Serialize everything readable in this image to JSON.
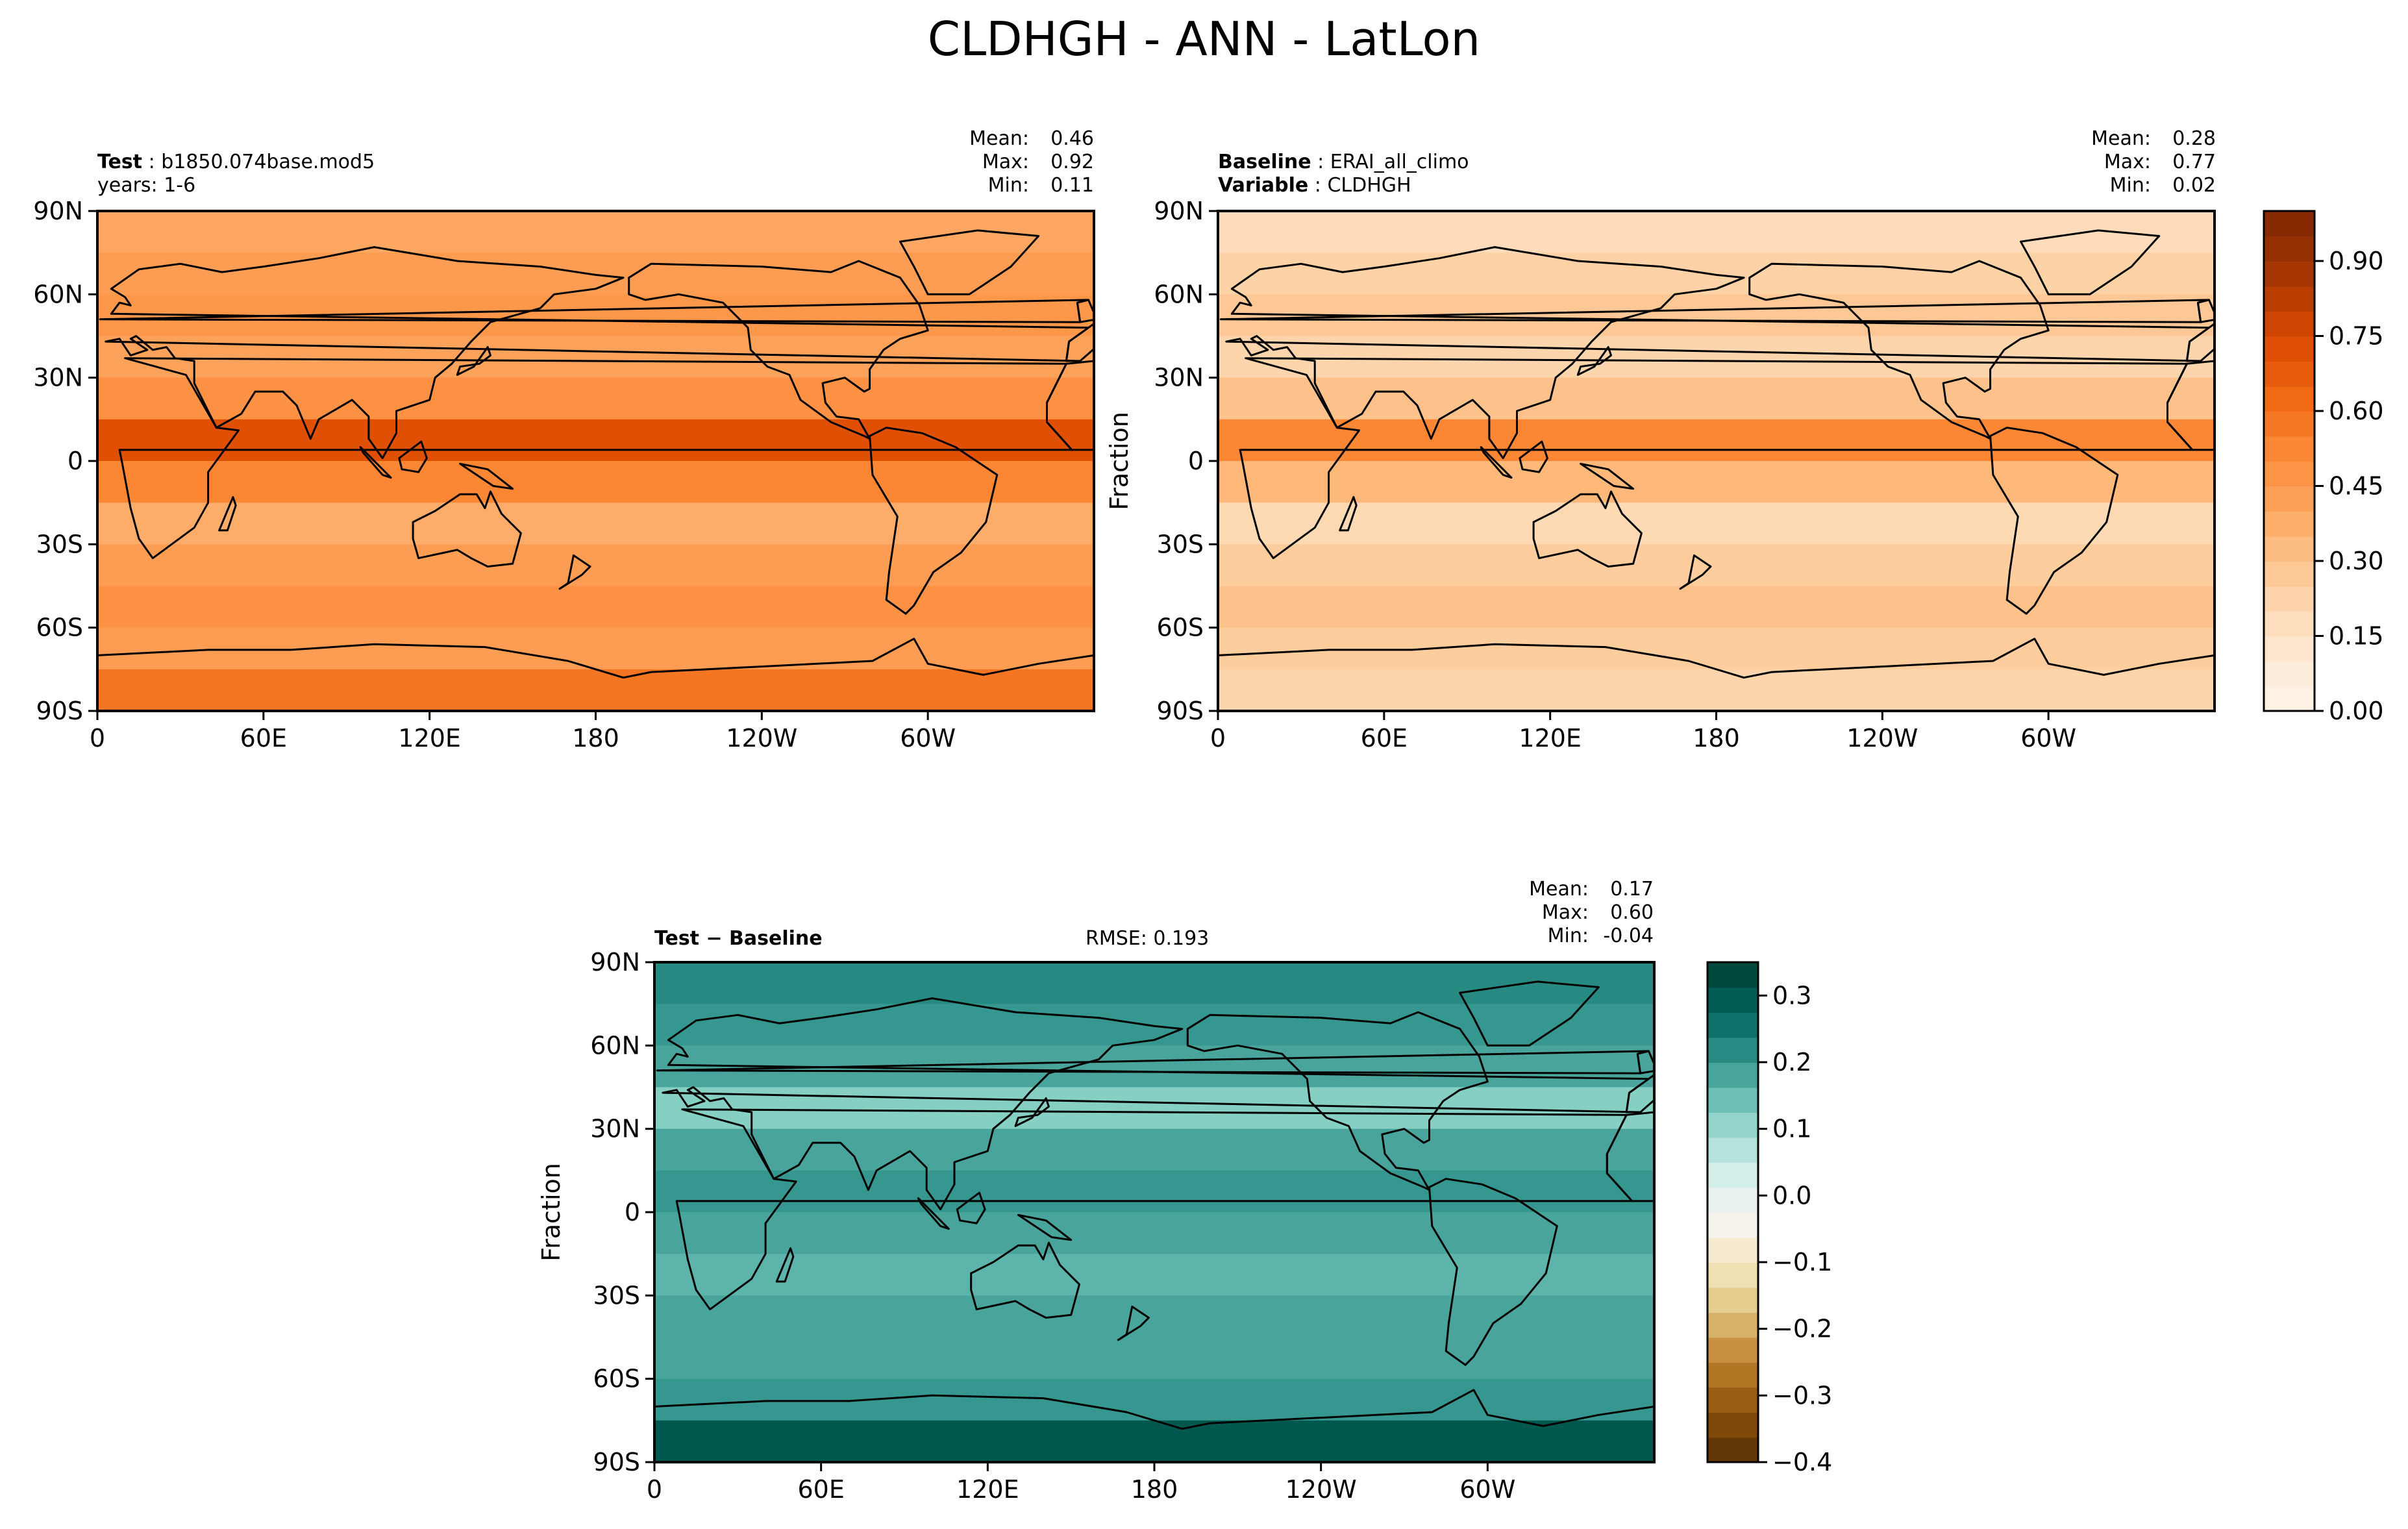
{
  "figure_title": "CLDHGH - ANN - LatLon",
  "panels": {
    "test": {
      "label_bold": "Test",
      "label_value": "b1850.074base.mod5",
      "line2": "years: 1-6",
      "stats": {
        "mean_label": "Mean:",
        "mean": "0.46",
        "max_label": "Max:",
        "max": "0.92",
        "min_label": "Min:",
        "min": "0.11"
      }
    },
    "baseline": {
      "label_bold": "Baseline",
      "label_value": "ERAI_all_climo",
      "line2_bold": "Variable",
      "line2_value": "CLDHGH",
      "ylabel": "Fraction",
      "stats": {
        "mean_label": "Mean:",
        "mean": "0.28",
        "max_label": "Max:",
        "max": "0.77",
        "min_label": "Min:",
        "min": "0.02"
      }
    },
    "diff": {
      "label": "Test − Baseline",
      "rmse": "RMSE: 0.193",
      "ylabel": "Fraction",
      "stats": {
        "mean_label": "Mean:",
        "mean": "0.17",
        "max_label": "Max:",
        "max": "0.60",
        "min_label": "Min:",
        "min": "-0.04"
      }
    }
  },
  "chart_data": [
    {
      "type": "heatmap",
      "name": "test",
      "title": "Test: b1850.074base.mod5",
      "x_ticks": [
        "0",
        "60E",
        "120E",
        "180",
        "120W",
        "60W"
      ],
      "y_ticks": [
        "90N",
        "60N",
        "30N",
        "0",
        "30S",
        "60S",
        "90S"
      ],
      "lat_bands": [
        90,
        75,
        60,
        45,
        30,
        15,
        0,
        -15,
        -30,
        -45,
        -60,
        -75,
        -90
      ],
      "band_values": [
        0.4,
        0.44,
        0.46,
        0.42,
        0.48,
        0.72,
        0.52,
        0.38,
        0.44,
        0.48,
        0.44,
        0.58
      ],
      "mean": 0.46,
      "max": 0.92,
      "min": 0.11,
      "colormap": "Oranges",
      "vmin": 0.0,
      "vmax": 1.0
    },
    {
      "type": "heatmap",
      "name": "baseline",
      "title": "Baseline: ERAI_all_climo",
      "x_ticks": [
        "0",
        "60E",
        "120E",
        "180",
        "120W",
        "60W"
      ],
      "y_ticks": [
        "90N",
        "60N",
        "30N",
        "0",
        "30S",
        "60S",
        "90S"
      ],
      "lat_bands": [
        90,
        75,
        60,
        45,
        30,
        15,
        0,
        -15,
        -30,
        -45,
        -60,
        -75,
        -90
      ],
      "band_values": [
        0.18,
        0.24,
        0.28,
        0.22,
        0.3,
        0.52,
        0.34,
        0.2,
        0.26,
        0.3,
        0.26,
        0.22
      ],
      "mean": 0.28,
      "max": 0.77,
      "min": 0.02,
      "colormap": "Oranges",
      "vmin": 0.0,
      "vmax": 1.0
    },
    {
      "type": "heatmap",
      "name": "diff",
      "title": "Test − Baseline",
      "x_ticks": [
        "0",
        "60E",
        "120E",
        "180",
        "120W",
        "60W"
      ],
      "y_ticks": [
        "90N",
        "60N",
        "30N",
        "0",
        "30S",
        "60S",
        "90S"
      ],
      "lat_bands": [
        90,
        75,
        60,
        45,
        30,
        15,
        0,
        -15,
        -30,
        -45,
        -60,
        -75,
        -90
      ],
      "band_values": [
        0.22,
        0.2,
        0.18,
        0.12,
        0.18,
        0.2,
        0.18,
        0.16,
        0.18,
        0.18,
        0.2,
        0.3
      ],
      "mean": 0.17,
      "max": 0.6,
      "min": -0.04,
      "colormap": "BrBG",
      "vmin": -0.4,
      "vmax": 0.35
    }
  ],
  "colorbars": {
    "main": {
      "ticks": [
        "0.00",
        "0.15",
        "0.30",
        "0.45",
        "0.60",
        "0.75",
        "0.90"
      ],
      "tick_values": [
        0.0,
        0.15,
        0.3,
        0.45,
        0.6,
        0.75,
        0.9
      ],
      "vmin": 0.0,
      "vmax": 1.0
    },
    "diff": {
      "ticks": [
        "−0.4",
        "−0.3",
        "−0.2",
        "−0.1",
        "0.0",
        "0.1",
        "0.2",
        "0.3"
      ],
      "tick_values": [
        -0.4,
        -0.3,
        -0.2,
        -0.1,
        0.0,
        0.1,
        0.2,
        0.3
      ],
      "vmin": -0.4,
      "vmax": 0.35
    }
  },
  "colors": {
    "oranges": [
      "#fff5eb",
      "#fee6ce",
      "#fdd0a2",
      "#fdae6b",
      "#fd8d3c",
      "#f16913",
      "#d94801",
      "#a63603",
      "#7f2704"
    ],
    "brbg": [
      "#543005",
      "#8c510a",
      "#bf812d",
      "#dfc27d",
      "#f6e8c3",
      "#f5f5f5",
      "#c7eae5",
      "#80cdc1",
      "#35978f",
      "#01665e",
      "#003c30"
    ]
  }
}
